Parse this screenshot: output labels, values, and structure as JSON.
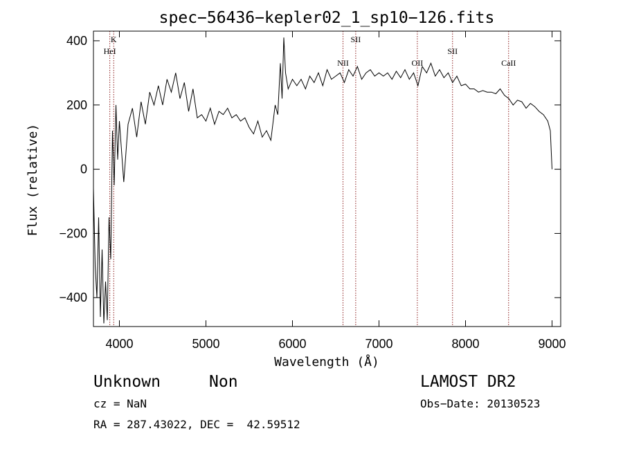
{
  "chart_data": {
    "type": "line",
    "title": "spec−56436−kepler02_1_sp10−126.fits",
    "xlabel": "Wavelength (Å)",
    "ylabel": "Flux (relative)",
    "xlim": [
      3700,
      9100
    ],
    "ylim": [
      -490,
      430
    ],
    "xticks": [
      4000,
      5000,
      6000,
      7000,
      8000,
      9000
    ],
    "yticks": [
      -400,
      -200,
      0,
      200,
      400
    ],
    "ytick_labels": [
      "−400",
      "−200",
      "0",
      "200",
      "400"
    ],
    "grid": false,
    "line_color": "#000000",
    "marker_color": "#8b1a1a",
    "series": [
      {
        "x": [
          3700,
          3720,
          3740,
          3760,
          3780,
          3800,
          3820,
          3840,
          3860,
          3880,
          3900,
          3920,
          3940,
          3960,
          3980,
          4000,
          4050,
          4100,
          4150,
          4200,
          4250,
          4300,
          4350,
          4400,
          4450,
          4500,
          4550,
          4600,
          4650,
          4700,
          4750,
          4800,
          4850,
          4900,
          4950,
          5000,
          5050,
          5100,
          5150,
          5200,
          5250,
          5300,
          5350,
          5400,
          5450,
          5500,
          5550,
          5600,
          5650,
          5700,
          5750,
          5800,
          5830,
          5860,
          5880,
          5900,
          5920,
          5950,
          6000,
          6050,
          6100,
          6150,
          6200,
          6250,
          6300,
          6350,
          6400,
          6450,
          6500,
          6550,
          6600,
          6650,
          6700,
          6750,
          6800,
          6850,
          6900,
          6950,
          7000,
          7050,
          7100,
          7150,
          7200,
          7250,
          7300,
          7350,
          7400,
          7450,
          7500,
          7550,
          7600,
          7650,
          7700,
          7750,
          7800,
          7850,
          7900,
          7950,
          8000,
          8050,
          8100,
          8150,
          8200,
          8250,
          8300,
          8350,
          8400,
          8450,
          8500,
          8550,
          8600,
          8650,
          8700,
          8750,
          8800,
          8850,
          8900,
          8950,
          8980,
          9000
        ],
        "y": [
          -60,
          -300,
          -400,
          -150,
          -460,
          -250,
          -480,
          -350,
          -470,
          -150,
          -280,
          120,
          -50,
          200,
          30,
          150,
          -40,
          140,
          190,
          100,
          210,
          140,
          240,
          200,
          260,
          200,
          280,
          240,
          300,
          220,
          270,
          180,
          250,
          160,
          170,
          150,
          190,
          140,
          180,
          170,
          190,
          160,
          170,
          150,
          160,
          130,
          110,
          150,
          100,
          120,
          90,
          200,
          170,
          330,
          220,
          410,
          300,
          250,
          280,
          260,
          280,
          250,
          290,
          270,
          300,
          260,
          310,
          280,
          290,
          300,
          270,
          310,
          290,
          320,
          280,
          300,
          310,
          290,
          300,
          290,
          300,
          280,
          305,
          285,
          310,
          280,
          300,
          260,
          320,
          300,
          330,
          290,
          310,
          285,
          300,
          270,
          290,
          260,
          265,
          250,
          250,
          240,
          245,
          240,
          240,
          235,
          250,
          230,
          220,
          200,
          215,
          210,
          190,
          205,
          195,
          180,
          170,
          150,
          120,
          0
        ]
      }
    ],
    "line_markers": [
      {
        "label": "K",
        "x": 3934,
        "row": 1
      },
      {
        "label": "HeI",
        "x": 3889,
        "row": 2
      },
      {
        "label": "NII",
        "x": 6584,
        "row": 3
      },
      {
        "label": "SII",
        "x": 6731,
        "row": 1
      },
      {
        "label": "OII",
        "x": 7443,
        "row": 3
      },
      {
        "label": "SII",
        "x": 7850,
        "row": 2
      },
      {
        "label": "CaII",
        "x": 8498,
        "row": 3
      }
    ]
  },
  "info": {
    "classification": "Unknown",
    "subclass": "Non",
    "survey": "LAMOST DR2",
    "redshift": "cz = NaN",
    "obs_date": "Obs−Date: 20130523",
    "coords": "RA = 287.43022, DEC =  42.59512"
  }
}
